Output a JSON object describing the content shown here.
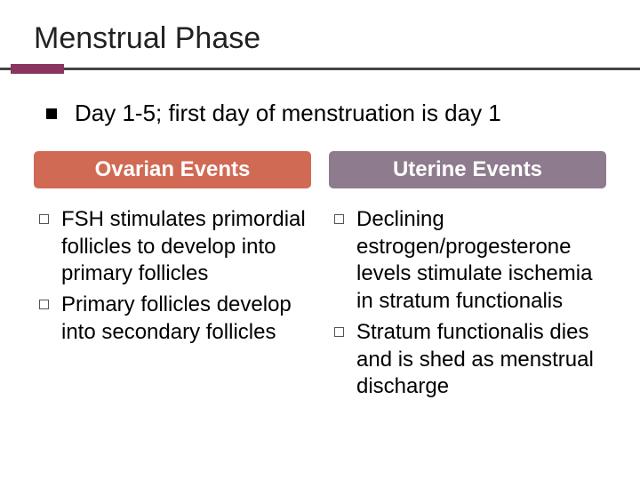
{
  "title": "Menstrual Phase",
  "subtitle": "Day 1-5; first day of menstruation is day 1",
  "accent_color": "#8a355f",
  "columns": {
    "left": {
      "header": "Ovarian Events",
      "header_bg": "#d16a54",
      "items": [
        "FSH stimulates primordial follicles to develop into primary follicles",
        "Primary follicles develop into secondary follicles"
      ]
    },
    "right": {
      "header": "Uterine Events",
      "header_bg": "#8e7b8d",
      "items": [
        "Declining estrogen/progesterone levels stimulate ischemia in stratum functionalis",
        "Stratum functionalis dies and is shed as menstrual discharge"
      ]
    }
  }
}
